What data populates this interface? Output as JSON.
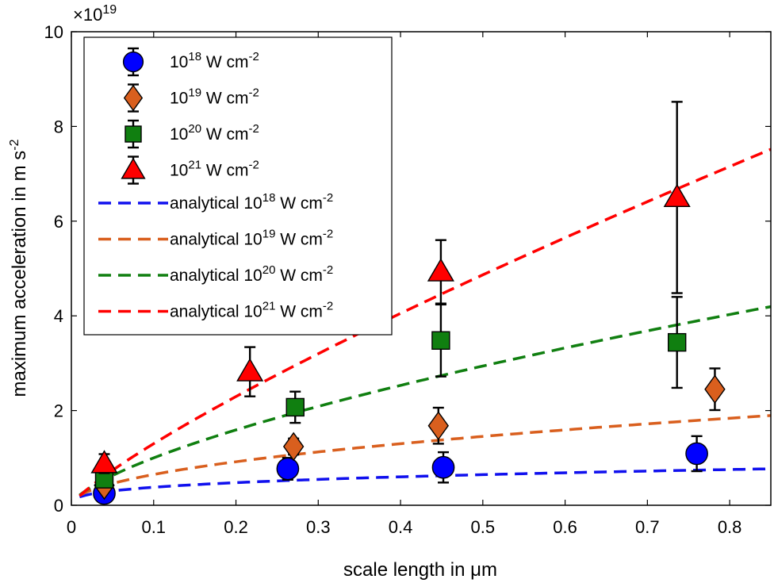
{
  "chart_data": {
    "type": "scatter",
    "xlabel": "scale length in μm",
    "ylabel": "maximum acceleration in m s",
    "ylabel_sup": "-2",
    "yscale_base": "×10",
    "yscale_exp": "19",
    "xlim": [
      0,
      0.85
    ],
    "ylim": [
      0,
      10
    ],
    "xticks": [
      0,
      0.1,
      0.2,
      0.3,
      0.4,
      0.5,
      0.6,
      0.7,
      0.8
    ],
    "xtick_labels": [
      "0",
      "0.1",
      "0.2",
      "0.3",
      "0.4",
      "0.5",
      "0.6",
      "0.7",
      "0.8"
    ],
    "yticks": [
      0,
      2,
      4,
      6,
      8,
      10
    ],
    "ytick_labels": [
      "0",
      "2",
      "4",
      "6",
      "8",
      "10"
    ],
    "legend_position": "top-left",
    "unit_label": "W cm",
    "unit_sup": "-2",
    "series": [
      {
        "name_base": "10",
        "name_exp": "18",
        "marker": "circle",
        "color": "#0000ff",
        "points": [
          {
            "x": 0.04,
            "y": 0.25,
            "err": 0.1
          },
          {
            "x": 0.263,
            "y": 0.77,
            "err": 0.23
          },
          {
            "x": 0.452,
            "y": 0.8,
            "err": 0.32
          },
          {
            "x": 0.76,
            "y": 1.09,
            "err": 0.37
          }
        ]
      },
      {
        "name_base": "10",
        "name_exp": "19",
        "marker": "diamond",
        "color": "#d95f1e",
        "points": [
          {
            "x": 0.04,
            "y": 0.42,
            "err": 0.12
          },
          {
            "x": 0.27,
            "y": 1.24,
            "err": 0.17
          },
          {
            "x": 0.446,
            "y": 1.68,
            "err": 0.38
          },
          {
            "x": 0.782,
            "y": 2.45,
            "err": 0.44
          }
        ]
      },
      {
        "name_base": "10",
        "name_exp": "20",
        "marker": "square",
        "color": "#107f10",
        "points": [
          {
            "x": 0.04,
            "y": 0.55,
            "err": 0.15
          },
          {
            "x": 0.272,
            "y": 2.07,
            "err": 0.33
          },
          {
            "x": 0.449,
            "y": 3.48,
            "err": 0.76
          },
          {
            "x": 0.736,
            "y": 3.44,
            "err": 0.96
          }
        ]
      },
      {
        "name_base": "10",
        "name_exp": "21",
        "marker": "triangle",
        "color": "#ff0000",
        "points": [
          {
            "x": 0.04,
            "y": 0.88,
            "err": 0.2
          },
          {
            "x": 0.217,
            "y": 2.82,
            "err": 0.52
          },
          {
            "x": 0.449,
            "y": 4.93,
            "err": 0.67
          },
          {
            "x": 0.736,
            "y": 6.5,
            "err": 2.02
          }
        ]
      }
    ],
    "analytical": [
      {
        "name_prefix": "analytical",
        "name_base": "10",
        "name_exp": "18",
        "color": "#1010ee",
        "C": 0.38,
        "alpha": 0.33
      },
      {
        "name_prefix": "analytical",
        "name_base": "10",
        "name_exp": "19",
        "color": "#d95f1e",
        "C": 0.65,
        "alpha": 0.5
      },
      {
        "name_prefix": "analytical",
        "name_base": "10",
        "name_exp": "20",
        "color": "#107f10",
        "C": 1.0,
        "alpha": 0.67
      },
      {
        "name_prefix": "analytical",
        "name_base": "10",
        "name_exp": "21",
        "color": "#ff0000",
        "C": 1.3,
        "alpha": 0.82
      }
    ]
  }
}
